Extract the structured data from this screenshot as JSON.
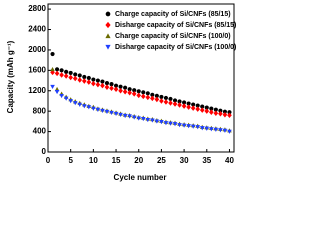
{
  "chart_data": {
    "type": "scatter",
    "xlabel": "Cycle number",
    "ylabel": "Capacity (mAh g⁻¹)",
    "x": [
      1,
      2,
      3,
      4,
      5,
      6,
      7,
      8,
      9,
      10,
      11,
      12,
      13,
      14,
      15,
      16,
      17,
      18,
      19,
      20,
      21,
      22,
      23,
      24,
      25,
      26,
      27,
      28,
      29,
      30,
      31,
      32,
      33,
      34,
      35,
      36,
      37,
      38,
      39,
      40
    ],
    "series": [
      {
        "name": "Charge capacity of Si/CNFs (85/15)",
        "color": "#000000",
        "marker": "circle",
        "values": [
          1920,
          1620,
          1600,
          1570,
          1550,
          1520,
          1500,
          1470,
          1450,
          1420,
          1400,
          1380,
          1350,
          1330,
          1300,
          1280,
          1260,
          1230,
          1210,
          1190,
          1170,
          1150,
          1120,
          1100,
          1080,
          1060,
          1040,
          1010,
          990,
          970,
          950,
          930,
          910,
          890,
          870,
          850,
          830,
          810,
          790,
          780
        ]
      },
      {
        "name": "Disharge capacity of Si/CNFs (85/15)",
        "color": "#ff0000",
        "marker": "diamond",
        "values": [
          1560,
          1540,
          1510,
          1490,
          1460,
          1440,
          1410,
          1390,
          1370,
          1340,
          1320,
          1300,
          1270,
          1250,
          1230,
          1200,
          1180,
          1160,
          1140,
          1110,
          1090,
          1070,
          1050,
          1030,
          1000,
          980,
          960,
          940,
          920,
          900,
          880,
          860,
          840,
          820,
          800,
          780,
          760,
          750,
          730,
          720
        ]
      },
      {
        "name": "Charge capacity  of Si/CNFs (100/0)",
        "color": "#6b6b00",
        "marker": "triangle",
        "values": [
          1620,
          1230,
          1140,
          1080,
          1030,
          990,
          960,
          930,
          900,
          880,
          850,
          830,
          810,
          790,
          770,
          750,
          730,
          720,
          700,
          680,
          670,
          650,
          640,
          620,
          610,
          590,
          580,
          570,
          550,
          540,
          530,
          520,
          510,
          490,
          480,
          470,
          460,
          450,
          440,
          420
        ]
      },
      {
        "name": "Disharge capacity of  Si/CNFs (100/0)",
        "color": "#1f3fff",
        "marker": "triangle-down",
        "values": [
          1280,
          1180,
          1100,
          1050,
          1000,
          960,
          930,
          900,
          880,
          850,
          830,
          810,
          790,
          770,
          750,
          730,
          710,
          700,
          680,
          660,
          650,
          630,
          620,
          600,
          590,
          570,
          560,
          550,
          530,
          520,
          510,
          500,
          490,
          470,
          460,
          450,
          440,
          430,
          420,
          400
        ]
      }
    ],
    "xlim": [
      0,
      41
    ],
    "xticks": [
      0,
      5,
      10,
      15,
      20,
      25,
      30,
      35,
      40
    ],
    "ylim": [
      0,
      2900
    ],
    "yticks": [
      0,
      400,
      800,
      1200,
      1600,
      2000,
      2400,
      2800
    ],
    "legend": "upper right"
  }
}
